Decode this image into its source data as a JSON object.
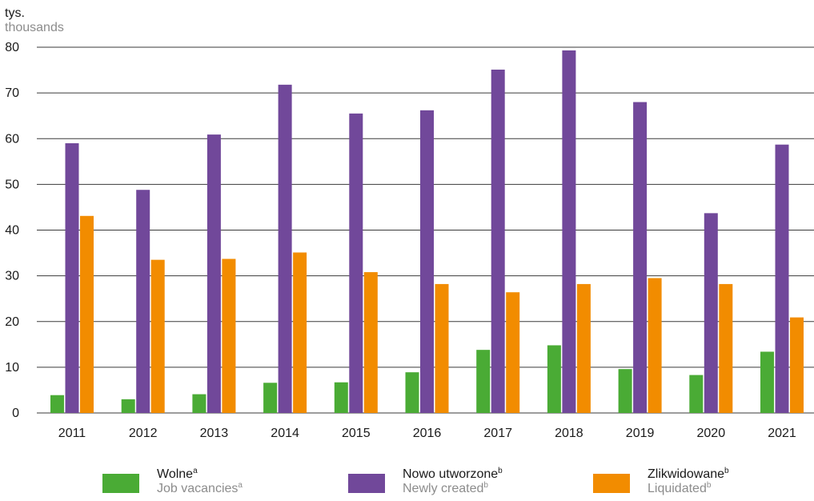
{
  "unit": {
    "pl": "tys.",
    "en": "thousands"
  },
  "chart_data": {
    "type": "bar",
    "categories": [
      "2011",
      "2012",
      "2013",
      "2014",
      "2015",
      "2016",
      "2017",
      "2018",
      "2019",
      "2020",
      "2021"
    ],
    "series": [
      {
        "name": "Wolne / Job vacancies",
        "color": "#4aab35",
        "values": [
          3.9,
          3.0,
          4.1,
          6.6,
          6.7,
          8.9,
          13.8,
          14.8,
          9.6,
          8.3,
          13.4
        ]
      },
      {
        "name": "Nowo utworzone / Newly created",
        "color": "#71489a",
        "values": [
          59.0,
          48.8,
          60.9,
          71.8,
          65.5,
          66.2,
          75.1,
          79.3,
          68.0,
          43.7,
          58.7
        ]
      },
      {
        "name": "Zlikwidowane / Liquidated",
        "color": "#f28c00",
        "values": [
          43.1,
          33.5,
          33.7,
          35.1,
          30.8,
          28.2,
          26.4,
          28.2,
          29.5,
          28.2,
          20.9
        ]
      }
    ],
    "yticks": [
      0,
      10,
      20,
      30,
      40,
      50,
      60,
      70,
      80
    ],
    "ylim": [
      0,
      80
    ],
    "grid": true,
    "legend_position": "bottom"
  },
  "legend": [
    {
      "pl": "Wolne",
      "pl_sup": "a",
      "en": "Job vacancies",
      "en_sup": "a",
      "color": "#4aab35"
    },
    {
      "pl": "Nowo utworzone",
      "pl_sup": "b",
      "en": "Newly created",
      "en_sup": "b",
      "color": "#71489a"
    },
    {
      "pl": "Zlikwidowane",
      "pl_sup": "b",
      "en": "Liquidated",
      "en_sup": "b",
      "color": "#f28c00"
    }
  ]
}
